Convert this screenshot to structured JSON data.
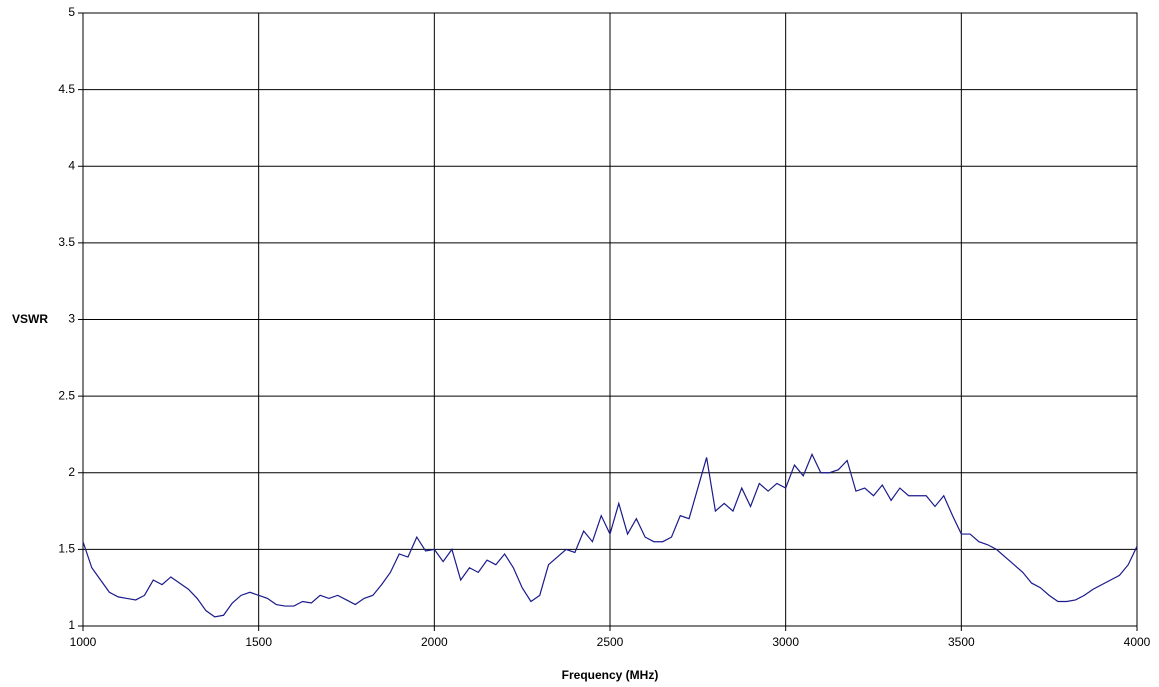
{
  "chart_data": {
    "type": "line",
    "x_label": "Frequency (MHz)",
    "y_label": "VSWR",
    "x": [
      1000,
      1025,
      1050,
      1075,
      1100,
      1125,
      1150,
      1175,
      1200,
      1225,
      1250,
      1275,
      1300,
      1325,
      1350,
      1375,
      1400,
      1425,
      1450,
      1475,
      1500,
      1525,
      1550,
      1575,
      1600,
      1625,
      1650,
      1675,
      1700,
      1725,
      1750,
      1775,
      1800,
      1825,
      1850,
      1875,
      1900,
      1925,
      1950,
      1975,
      2000,
      2025,
      2050,
      2075,
      2100,
      2125,
      2150,
      2175,
      2200,
      2225,
      2250,
      2275,
      2300,
      2325,
      2350,
      2375,
      2400,
      2425,
      2450,
      2475,
      2500,
      2525,
      2550,
      2575,
      2600,
      2625,
      2650,
      2675,
      2700,
      2725,
      2750,
      2775,
      2800,
      2825,
      2850,
      2875,
      2900,
      2925,
      2950,
      2975,
      3000,
      3025,
      3050,
      3075,
      3100,
      3125,
      3150,
      3175,
      3200,
      3225,
      3250,
      3275,
      3300,
      3325,
      3350,
      3375,
      3400,
      3425,
      3450,
      3475,
      3500,
      3525,
      3550,
      3575,
      3600,
      3625,
      3650,
      3675,
      3700,
      3725,
      3750,
      3775,
      3800,
      3825,
      3850,
      3875,
      3900,
      3925,
      3950,
      3975,
      4000
    ],
    "series": [
      {
        "color": "#1a1a8c",
        "values": [
          1.55,
          1.38,
          1.3,
          1.22,
          1.19,
          1.18,
          1.17,
          1.2,
          1.3,
          1.27,
          1.32,
          1.28,
          1.24,
          1.18,
          1.1,
          1.06,
          1.07,
          1.15,
          1.2,
          1.22,
          1.2,
          1.18,
          1.14,
          1.13,
          1.13,
          1.16,
          1.15,
          1.2,
          1.18,
          1.2,
          1.17,
          1.14,
          1.18,
          1.2,
          1.27,
          1.35,
          1.47,
          1.45,
          1.58,
          1.49,
          1.5,
          1.42,
          1.5,
          1.3,
          1.38,
          1.35,
          1.43,
          1.4,
          1.47,
          1.38,
          1.25,
          1.16,
          1.2,
          1.4,
          1.45,
          1.5,
          1.48,
          1.62,
          1.55,
          1.72,
          1.6,
          1.8,
          1.6,
          1.7,
          1.58,
          1.55,
          1.55,
          1.58,
          1.72,
          1.7,
          1.9,
          2.1,
          1.75,
          1.8,
          1.75,
          1.9,
          1.78,
          1.93,
          1.88,
          1.93,
          1.9,
          2.05,
          1.98,
          2.12,
          2.0,
          2.0,
          2.02,
          2.08,
          1.88,
          1.9,
          1.85,
          1.92,
          1.82,
          1.9,
          1.85,
          1.85,
          1.85,
          1.78,
          1.85,
          1.72,
          1.6,
          1.6,
          1.55,
          1.53,
          1.5,
          1.45,
          1.4,
          1.35,
          1.28,
          1.25,
          1.2,
          1.16,
          1.16,
          1.17,
          1.2,
          1.24,
          1.27,
          1.3,
          1.33,
          1.4,
          1.52
        ]
      }
    ],
    "xlim": [
      1000,
      4000
    ],
    "xticks": [
      1000,
      1500,
      2000,
      2500,
      3000,
      3500,
      4000
    ],
    "ylim": [
      1,
      5
    ],
    "yticks": [
      1,
      1.5,
      2,
      2.5,
      3,
      3.5,
      4,
      4.5,
      5
    ],
    "grid": true
  }
}
